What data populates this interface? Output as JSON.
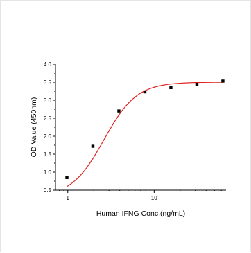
{
  "chart_data": {
    "type": "scatter",
    "xlabel": "Human IFNG Conc.(ng/mL)",
    "ylabel": "OD Value (450nm)",
    "x_scale": "log",
    "xlim": [
      0.72,
      68
    ],
    "ylim": [
      0.5,
      4.0
    ],
    "x_ticks": [
      1,
      10
    ],
    "x_tick_labels": [
      "1",
      "10"
    ],
    "y_ticks": [
      0.5,
      1.0,
      1.5,
      2.0,
      2.5,
      3.0,
      3.5,
      4.0
    ],
    "y_tick_labels": [
      "0.5",
      "1.0",
      "1.5",
      "2.0",
      "2.5",
      "3.0",
      "3.5",
      "4.0"
    ],
    "grid": false,
    "series": [
      {
        "marker": "square",
        "color": "#000000",
        "x": [
          0.977,
          1.953,
          3.906,
          7.813,
          15.625,
          31.25,
          62.5
        ],
        "y": [
          0.85,
          1.72,
          2.7,
          3.23,
          3.35,
          3.44,
          3.53
        ]
      }
    ],
    "fit_curve": {
      "color": "#e02020",
      "x_range": [
        0.977,
        62.5
      ],
      "y_bottom": 0.3,
      "y_top": 3.5,
      "ec50": 2.62,
      "hill": 2.3
    }
  }
}
